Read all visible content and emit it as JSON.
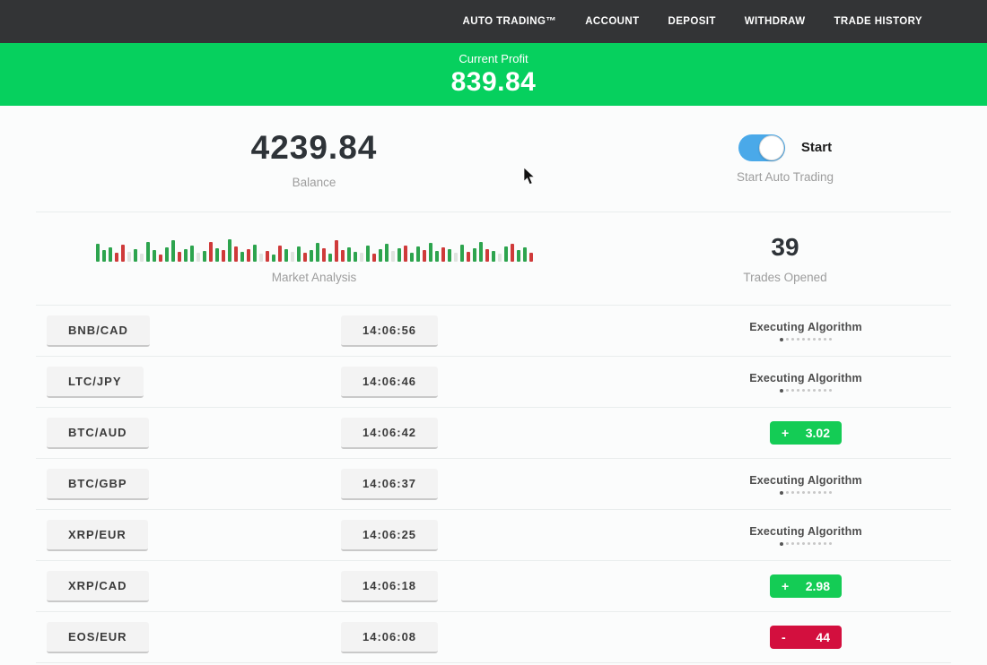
{
  "nav": {
    "items": [
      "AUTO TRADING™",
      "ACCOUNT",
      "DEPOSIT",
      "WITHDRAW",
      "TRADE HISTORY"
    ]
  },
  "profit_banner": {
    "label": "Current Profit",
    "value": "839.84"
  },
  "stats": {
    "balance": {
      "value": "4239.84",
      "label": "Balance"
    },
    "auto_trading": {
      "toggle_label": "Start",
      "label": "Start Auto Trading",
      "toggle_on": true
    },
    "market_analysis": {
      "label": "Market Analysis",
      "bars": "g20,g13,g16,r10,r19,l11,g14,l9,g22,g13,r8,g16,g24,r11,g14,g18,l10,g12,r22,g15,r13,g25,r17,g11,r14,g19,l9,r12,g8,r18,g14,l11,g17,r10,g13,g21,r15,g9,r24,r13,g16,g11,l10,g18,r9,g14,g20,l12,g15,r18,g10,g17,r13,g21,g12,r16,g14,l10,g19,r11,g15,g22,r14,g12,l9,g17,r20,g13,g16,r10"
    },
    "trades_opened": {
      "value": "39",
      "label": "Trades Opened"
    }
  },
  "trades": [
    {
      "pair": "BNB/CAD",
      "time": "14:06:56",
      "status": {
        "type": "executing",
        "label": "Executing Algorithm"
      }
    },
    {
      "pair": "LTC/JPY",
      "time": "14:06:46",
      "status": {
        "type": "executing",
        "label": "Executing Algorithm"
      }
    },
    {
      "pair": "BTC/AUD",
      "time": "14:06:42",
      "status": {
        "type": "profit",
        "sign": "+",
        "value": "3.02"
      }
    },
    {
      "pair": "BTC/GBP",
      "time": "14:06:37",
      "status": {
        "type": "executing",
        "label": "Executing Algorithm"
      }
    },
    {
      "pair": "XRP/EUR",
      "time": "14:06:25",
      "status": {
        "type": "executing",
        "label": "Executing Algorithm"
      }
    },
    {
      "pair": "XRP/CAD",
      "time": "14:06:18",
      "status": {
        "type": "profit",
        "sign": "+",
        "value": "2.98"
      }
    },
    {
      "pair": "EOS/EUR",
      "time": "14:06:08",
      "status": {
        "type": "loss",
        "sign": "-",
        "value": "44"
      }
    }
  ],
  "colors": {
    "nav_bg": "#333436",
    "banner_green": "#06d05e",
    "toggle_blue": "#4aa9e9",
    "badge_profit": "#14cc55",
    "badge_loss": "#d30f3e",
    "chart_green": "#2da44e",
    "chart_red": "#cf3a3a",
    "chart_light": "#dfe3df"
  }
}
